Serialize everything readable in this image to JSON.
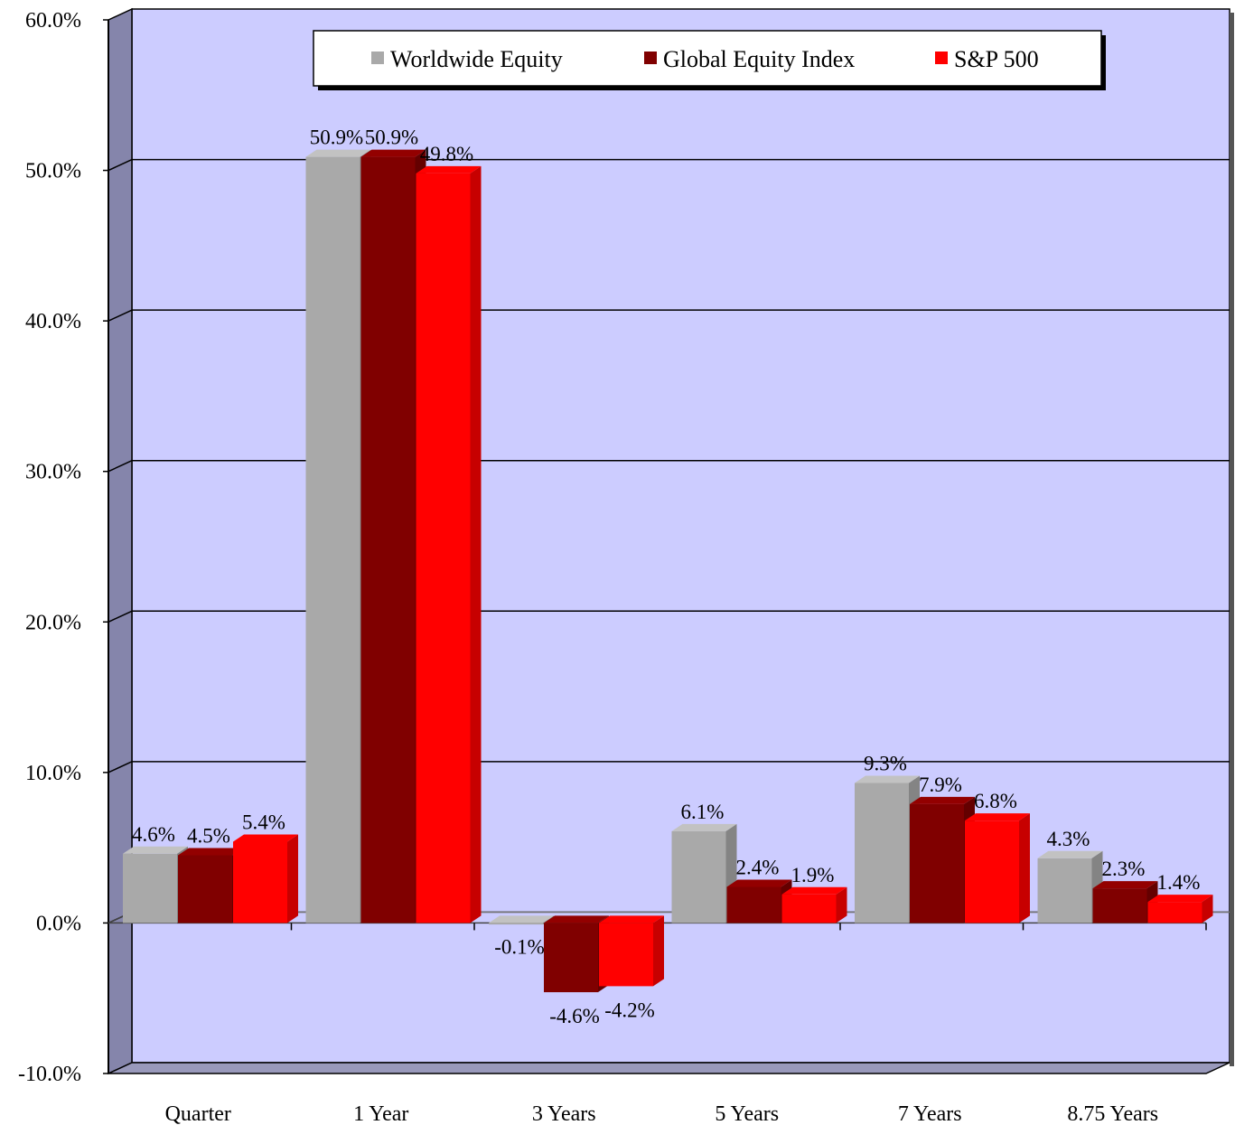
{
  "chart_data": {
    "type": "bar",
    "categories": [
      "Quarter",
      "1 Year",
      "3 Years",
      "5 Years",
      "7 Years",
      "8.75 Years"
    ],
    "series": [
      {
        "name": "Worldwide Equity",
        "color": "#a9a9a9",
        "values": [
          4.6,
          50.9,
          -0.1,
          6.1,
          9.3,
          4.3
        ],
        "labels": [
          "4.6%",
          "50.9%",
          "-0.1%",
          "6.1%",
          "9.3%",
          "4.3%"
        ]
      },
      {
        "name": "Global Equity Index",
        "color": "#800000",
        "values": [
          4.5,
          50.9,
          -4.6,
          2.4,
          7.9,
          2.3
        ],
        "labels": [
          "4.5%",
          "50.9%",
          "-4.6%",
          "2.4%",
          "7.9%",
          "2.3%"
        ]
      },
      {
        "name": "S&P 500",
        "color": "#ff0000",
        "values": [
          5.4,
          49.8,
          -4.2,
          1.9,
          6.8,
          1.4
        ],
        "labels": [
          "5.4%",
          "49.8%",
          "-4.2%",
          "1.9%",
          "6.8%",
          "1.4%"
        ]
      }
    ],
    "y_ticks": [
      "-10.0%",
      "0.0%",
      "10.0%",
      "20.0%",
      "30.0%",
      "40.0%",
      "50.0%",
      "60.0%"
    ],
    "ylim": [
      -10,
      60
    ],
    "grid": true,
    "legend_position": "top-center",
    "plot_background": "#ccccff"
  }
}
